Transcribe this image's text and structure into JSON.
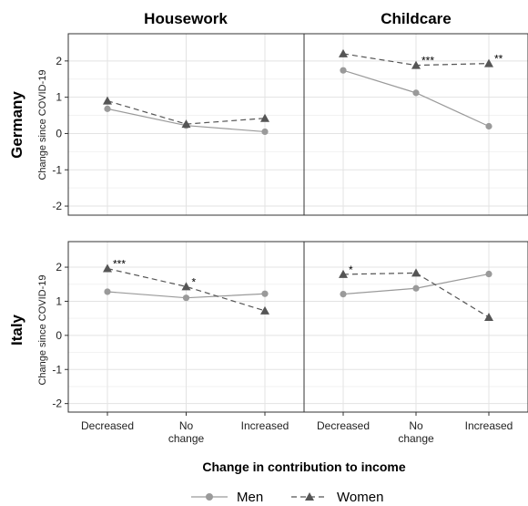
{
  "chart_data": {
    "type": "line",
    "columns": [
      "Housework",
      "Childcare"
    ],
    "rows": [
      "Germany",
      "Italy"
    ],
    "categories": [
      "Decreased",
      "No change",
      "Increased"
    ],
    "category_lines": [
      [
        "Decreased"
      ],
      [
        "No",
        "change"
      ],
      [
        "Increased"
      ]
    ],
    "ylabel": "Change since COVID-19",
    "xlabel": "Change in contribution to income",
    "ylim": [
      -2.25,
      2.75
    ],
    "yticks": [
      -2,
      -1,
      0,
      1,
      2
    ],
    "grid": true,
    "legend_position": "bottom",
    "series_styles": {
      "Men": {
        "color": "#9a9a9a",
        "dash": "none",
        "marker": "circle"
      },
      "Women": {
        "color": "#555555",
        "dash": "6,4",
        "marker": "triangle"
      }
    },
    "legend": [
      {
        "name": "Men",
        "style": "Men"
      },
      {
        "name": "Women",
        "style": "Women"
      }
    ],
    "panels": [
      {
        "row": "Germany",
        "column": "Housework",
        "series": [
          {
            "name": "Men",
            "values": [
              0.68,
              0.22,
              0.05
            ],
            "labels": [
              "",
              "",
              ""
            ]
          },
          {
            "name": "Women",
            "values": [
              0.9,
              0.26,
              0.42
            ],
            "labels": [
              "",
              "",
              ""
            ]
          }
        ]
      },
      {
        "row": "Germany",
        "column": "Childcare",
        "series": [
          {
            "name": "Men",
            "values": [
              1.74,
              1.12,
              0.2
            ],
            "labels": [
              "",
              "",
              ""
            ]
          },
          {
            "name": "Women",
            "values": [
              2.2,
              1.88,
              1.93
            ],
            "labels": [
              "",
              "***",
              "**"
            ]
          }
        ]
      },
      {
        "row": "Italy",
        "column": "Housework",
        "series": [
          {
            "name": "Men",
            "values": [
              1.28,
              1.1,
              1.22
            ],
            "labels": [
              "",
              "",
              ""
            ]
          },
          {
            "name": "Women",
            "values": [
              1.96,
              1.43,
              0.72
            ],
            "labels": [
              "***",
              "*",
              ""
            ]
          }
        ]
      },
      {
        "row": "Italy",
        "column": "Childcare",
        "series": [
          {
            "name": "Men",
            "values": [
              1.21,
              1.38,
              1.8
            ],
            "labels": [
              "",
              "",
              ""
            ]
          },
          {
            "name": "Women",
            "values": [
              1.79,
              1.83,
              0.53
            ],
            "labels": [
              "*",
              "",
              ""
            ]
          }
        ]
      }
    ]
  }
}
